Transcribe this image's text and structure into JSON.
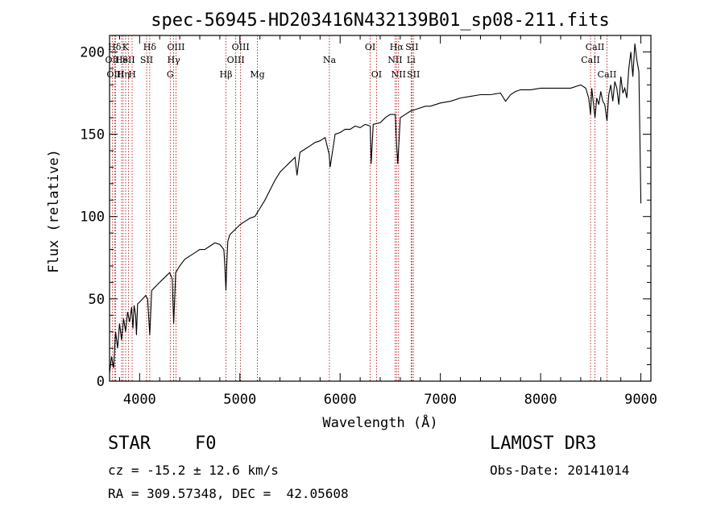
{
  "chart_data": {
    "type": "line",
    "title": "spec-56945-HD203416N432139B01_sp08-211.fits",
    "xlabel": "Wavelength (Å)",
    "ylabel": "Flux (relative)",
    "xlim": [
      3700,
      9100
    ],
    "ylim": [
      0,
      210
    ],
    "xticks": [
      4000,
      5000,
      6000,
      7000,
      8000,
      9000
    ],
    "yticks": [
      0,
      50,
      100,
      150,
      200
    ],
    "grid": false,
    "series": [
      {
        "name": "spectrum",
        "x": [
          3700,
          3720,
          3740,
          3760,
          3780,
          3800,
          3820,
          3840,
          3860,
          3880,
          3900,
          3920,
          3933,
          3945,
          3960,
          3968,
          3980,
          4000,
          4030,
          4060,
          4080,
          4101,
          4120,
          4150,
          4200,
          4250,
          4300,
          4325,
          4340,
          4360,
          4400,
          4450,
          4500,
          4550,
          4600,
          4650,
          4700,
          4750,
          4800,
          4840,
          4850,
          4861,
          4870,
          4880,
          4900,
          4950,
          5000,
          5050,
          5100,
          5150,
          5200,
          5250,
          5300,
          5350,
          5400,
          5450,
          5500,
          5550,
          5570,
          5600,
          5650,
          5700,
          5750,
          5800,
          5850,
          5890,
          5900,
          5950,
          6000,
          6050,
          6100,
          6150,
          6200,
          6250,
          6300,
          6310,
          6330,
          6400,
          6450,
          6500,
          6550,
          6562,
          6575,
          6600,
          6650,
          6700,
          6750,
          6800,
          6850,
          6900,
          6950,
          7000,
          7100,
          7200,
          7300,
          7400,
          7500,
          7600,
          7650,
          7700,
          7750,
          7800,
          7900,
          8000,
          8100,
          8200,
          8300,
          8400,
          8450,
          8480,
          8498,
          8510,
          8542,
          8560,
          8580,
          8600,
          8620,
          8640,
          8662,
          8680,
          8700,
          8720,
          8740,
          8760,
          8780,
          8800,
          8820,
          8840,
          8860,
          8880,
          8900,
          8920,
          8940,
          8960,
          8980,
          9000
        ],
        "values": [
          5,
          15,
          8,
          30,
          20,
          35,
          25,
          38,
          30,
          42,
          36,
          45,
          32,
          46,
          40,
          28,
          47,
          48,
          50,
          52,
          50,
          28,
          55,
          57,
          60,
          63,
          66,
          62,
          35,
          66,
          70,
          74,
          76,
          78,
          80,
          80,
          82,
          84,
          83,
          80,
          70,
          55,
          72,
          85,
          89,
          92,
          95,
          97,
          99,
          100,
          105,
          110,
          116,
          122,
          127,
          130,
          133,
          136,
          125,
          139,
          141,
          143,
          145,
          146,
          148,
          138,
          130,
          150,
          151,
          153,
          153,
          155,
          154,
          156,
          155,
          132,
          156,
          157,
          160,
          162,
          162,
          145,
          132,
          160,
          162,
          164,
          165,
          166,
          167,
          167,
          168,
          169,
          170,
          172,
          173,
          174,
          174,
          175,
          170,
          174,
          176,
          177,
          177,
          178,
          178,
          178,
          178,
          180,
          178,
          172,
          162,
          178,
          160,
          172,
          168,
          176,
          170,
          168,
          158,
          174,
          180,
          170,
          182,
          178,
          168,
          185,
          175,
          178,
          172,
          190,
          200,
          185,
          205,
          195,
          188,
          108
        ]
      }
    ],
    "line_markers": [
      {
        "label": "Hδ",
        "x": 3750,
        "row": 1
      },
      {
        "label": "OII",
        "x": 3727,
        "row": 2
      },
      {
        "label": "OIII",
        "x": 3760,
        "row": 3
      },
      {
        "label": "K",
        "x": 3860,
        "row": 1
      },
      {
        "label": "He",
        "x": 3820,
        "row": 2
      },
      {
        "label": "Hη",
        "x": 3835,
        "row": 3
      },
      {
        "label": "SII",
        "x": 3890,
        "row": 2
      },
      {
        "label": "H",
        "x": 3925,
        "row": 3
      },
      {
        "label": "Hδ",
        "x": 4101,
        "row": 1
      },
      {
        "label": "SII",
        "x": 4070,
        "row": 2
      },
      {
        "label": "OIII",
        "x": 4363,
        "row": 1
      },
      {
        "label": "Hγ",
        "x": 4340,
        "row": 2
      },
      {
        "label": "G",
        "x": 4305,
        "row": 3
      },
      {
        "label": "Hβ",
        "x": 4861,
        "row": 3
      },
      {
        "label": "OIII",
        "x": 5007,
        "row": 1
      },
      {
        "label": "OIII",
        "x": 4959,
        "row": 2
      },
      {
        "label": "Mg",
        "x": 5175,
        "row": 3
      },
      {
        "label": "Na",
        "x": 5893,
        "row": 2
      },
      {
        "label": "OI",
        "x": 6300,
        "row": 1
      },
      {
        "label": "OI",
        "x": 6363,
        "row": 3
      },
      {
        "label": "Hα",
        "x": 6563,
        "row": 1
      },
      {
        "label": "NII",
        "x": 6548,
        "row": 2
      },
      {
        "label": "NII",
        "x": 6583,
        "row": 3
      },
      {
        "label": "SII",
        "x": 6716,
        "row": 1
      },
      {
        "label": "Li",
        "x": 6708,
        "row": 2
      },
      {
        "label": "SII",
        "x": 6731,
        "row": 3
      },
      {
        "label": "CaII",
        "x": 8542,
        "row": 1
      },
      {
        "label": "CaII",
        "x": 8498,
        "row": 2
      },
      {
        "label": "CaII",
        "x": 8662,
        "row": 3
      }
    ],
    "colors": {
      "spectrum": "#000000",
      "marker_line": "#aa0000",
      "frame": "#000000"
    }
  },
  "info": {
    "object_class": "STAR",
    "subclass": "F0",
    "survey": "LAMOST DR3",
    "redshift_line": "cz = -15.2 ± 12.6 km/s",
    "obs_date_line": "Obs-Date: 20141014",
    "coords_line": "RA = 309.57348, DEC =  42.05608"
  }
}
